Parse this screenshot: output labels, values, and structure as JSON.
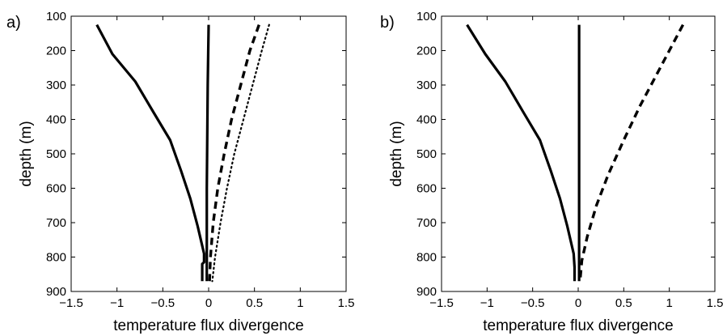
{
  "chart_data": [
    {
      "type": "line",
      "panel_label": "a)",
      "xlabel": "temperature flux divergence",
      "ylabel": "depth (m)",
      "xlim": [
        -1.5,
        1.5
      ],
      "ylim": [
        100,
        900
      ],
      "y_reversed": true,
      "xticks": [
        -1.5,
        -1,
        -0.5,
        0,
        0.5,
        1,
        1.5
      ],
      "xtick_labels": [
        "−1.5",
        "−1",
        "−0.5",
        "0",
        "0.5",
        "1",
        "1.5"
      ],
      "yticks": [
        100,
        200,
        300,
        400,
        500,
        600,
        700,
        800,
        900
      ],
      "ytick_labels": [
        "100",
        "200",
        "300",
        "400",
        "500",
        "600",
        "700",
        "800",
        "900"
      ],
      "grid": false,
      "series": [
        {
          "style": "solid",
          "color": "#000000",
          "points": [
            [
              -1.22,
              125
            ],
            [
              -1.05,
              210
            ],
            [
              -0.8,
              290
            ],
            [
              -0.6,
              380
            ],
            [
              -0.42,
              460
            ],
            [
              -0.3,
              550
            ],
            [
              -0.2,
              630
            ],
            [
              -0.12,
              710
            ],
            [
              -0.05,
              790
            ],
            [
              -0.05,
              815
            ],
            [
              -0.07,
              820
            ],
            [
              -0.07,
              870
            ]
          ]
        },
        {
          "style": "solid",
          "color": "#000000",
          "points": [
            [
              0.0,
              125
            ],
            [
              -0.01,
              300
            ],
            [
              -0.02,
              600
            ],
            [
              -0.02,
              850
            ],
            [
              -0.02,
              870
            ]
          ]
        },
        {
          "style": "dashed",
          "color": "#000000",
          "points": [
            [
              0.55,
              125
            ],
            [
              0.45,
              200
            ],
            [
              0.35,
              300
            ],
            [
              0.25,
              400
            ],
            [
              0.17,
              500
            ],
            [
              0.1,
              600
            ],
            [
              0.05,
              700
            ],
            [
              0.02,
              800
            ],
            [
              0.01,
              870
            ]
          ]
        },
        {
          "style": "dotted",
          "color": "#000000",
          "points": [
            [
              0.66,
              125
            ],
            [
              0.58,
              200
            ],
            [
              0.48,
              300
            ],
            [
              0.38,
              400
            ],
            [
              0.28,
              500
            ],
            [
              0.2,
              600
            ],
            [
              0.13,
              700
            ],
            [
              0.07,
              800
            ],
            [
              0.04,
              870
            ]
          ]
        }
      ]
    },
    {
      "type": "line",
      "panel_label": "b)",
      "xlabel": "temperature flux divergence",
      "ylabel": "depth (m)",
      "xlim": [
        -1.5,
        1.5
      ],
      "ylim": [
        100,
        900
      ],
      "y_reversed": true,
      "xticks": [
        -1.5,
        -1,
        -0.5,
        0,
        0.5,
        1,
        1.5
      ],
      "xtick_labels": [
        "−1.5",
        "−1",
        "−0.5",
        "0",
        "0.5",
        "1",
        "1.5"
      ],
      "yticks": [
        100,
        200,
        300,
        400,
        500,
        600,
        700,
        800,
        900
      ],
      "ytick_labels": [
        "100",
        "200",
        "300",
        "400",
        "500",
        "600",
        "700",
        "800",
        "900"
      ],
      "grid": false,
      "series": [
        {
          "style": "solid",
          "color": "#000000",
          "points": [
            [
              -1.22,
              125
            ],
            [
              -1.02,
              210
            ],
            [
              -0.8,
              290
            ],
            [
              -0.6,
              380
            ],
            [
              -0.42,
              460
            ],
            [
              -0.3,
              550
            ],
            [
              -0.2,
              630
            ],
            [
              -0.12,
              710
            ],
            [
              -0.05,
              790
            ],
            [
              -0.04,
              830
            ],
            [
              -0.04,
              870
            ]
          ]
        },
        {
          "style": "solid",
          "color": "#000000",
          "points": [
            [
              0.01,
              125
            ],
            [
              0.01,
              400
            ],
            [
              0.01,
              700
            ],
            [
              0.01,
              870
            ]
          ]
        },
        {
          "style": "dashed",
          "color": "#000000",
          "points": [
            [
              1.15,
              125
            ],
            [
              0.9,
              250
            ],
            [
              0.68,
              360
            ],
            [
              0.5,
              460
            ],
            [
              0.33,
              560
            ],
            [
              0.2,
              650
            ],
            [
              0.1,
              740
            ],
            [
              0.04,
              810
            ],
            [
              0.02,
              870
            ]
          ]
        }
      ]
    }
  ]
}
